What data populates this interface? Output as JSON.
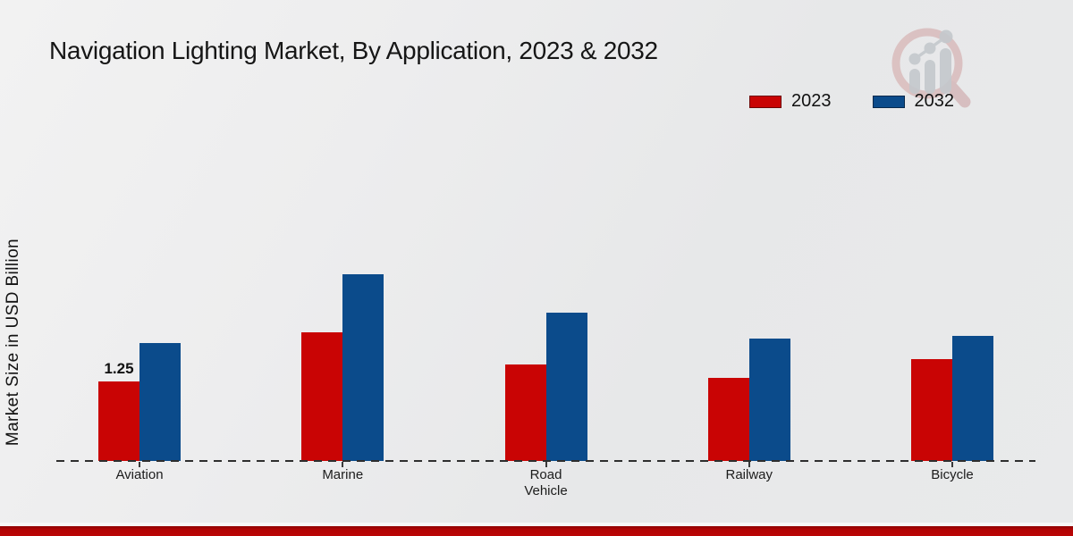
{
  "header": {
    "title": "Navigation Lighting Market, By Application, 2023 & 2032"
  },
  "colors": {
    "series_2023": "#c90404",
    "series_2032": "#0b4b8b",
    "footer_stripe": "#b30505",
    "background": "#eaebec",
    "baseline": "#2e2e2e"
  },
  "legend": {
    "items": [
      {
        "label": "2023",
        "color": "#c90404"
      },
      {
        "label": "2032",
        "color": "#0b4b8b"
      }
    ]
  },
  "logo": {
    "name": "magnifier-growth-chart-watermark"
  },
  "chart_data": {
    "type": "bar",
    "title": "Navigation Lighting Market, By Application, 2023 & 2032",
    "xlabel": "",
    "ylabel": "Market Size in USD Billion",
    "categories": [
      "Aviation",
      "Marine",
      "Road Vehicle",
      "Railway",
      "Bicycle"
    ],
    "series": [
      {
        "name": "2023",
        "color": "#c90404",
        "values": [
          1.25,
          2.02,
          1.52,
          1.31,
          1.6
        ]
      },
      {
        "name": "2032",
        "color": "#0b4b8b",
        "values": [
          1.85,
          2.93,
          2.33,
          1.92,
          1.97
        ]
      }
    ],
    "annotations": [
      {
        "category": "Aviation",
        "series": "2023",
        "text": "1.25"
      }
    ],
    "ylim": [
      0,
      3.5
    ],
    "grid": false,
    "axis_line_style": "dashed",
    "legend_position": "top-right"
  }
}
